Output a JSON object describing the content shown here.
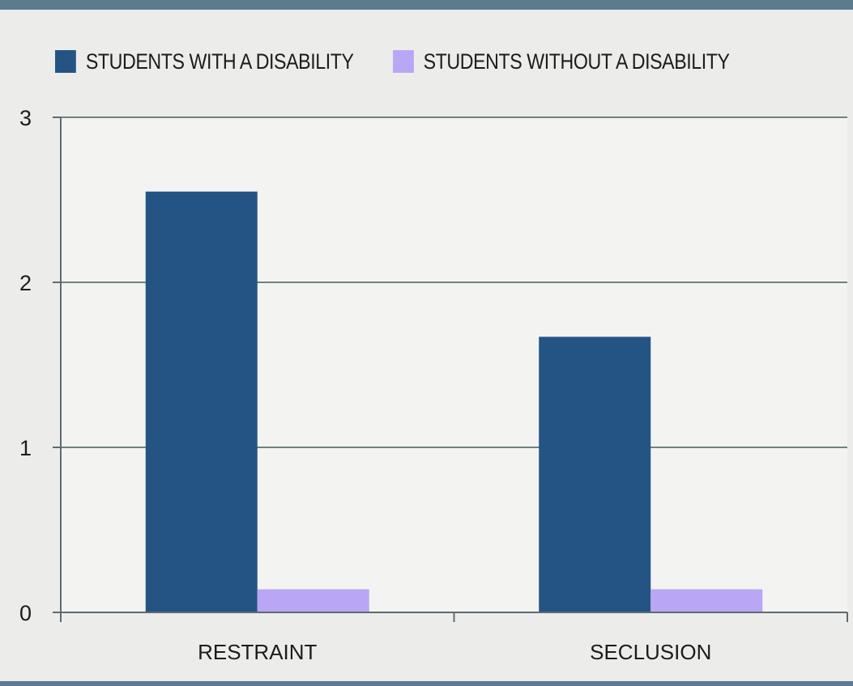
{
  "legend": {
    "series_1": "STUDENTS WITH A DISABILITY",
    "series_2": "STUDENTS WITHOUT A DISABILITY"
  },
  "colors": {
    "series_1": "#245483",
    "series_2": "#b9a6f5",
    "gridline": "#6f8180",
    "axis": "#5d6b6f",
    "plot_background": "#f3f4f2",
    "frame_rule": "#5d7a91"
  },
  "chart_data": {
    "type": "bar",
    "categories": [
      "RESTRAINT",
      "SECLUSION"
    ],
    "series": [
      {
        "name": "STUDENTS WITH A DISABILITY",
        "values": [
          2.55,
          1.67
        ]
      },
      {
        "name": "STUDENTS WITHOUT A DISABILITY",
        "values": [
          0.14,
          0.14
        ]
      }
    ],
    "yticks": [
      "0",
      "1",
      "2",
      "3"
    ],
    "ylim": [
      0,
      3
    ],
    "grid": true,
    "legend_position": "top",
    "title": "",
    "xlabel": "",
    "ylabel": ""
  }
}
